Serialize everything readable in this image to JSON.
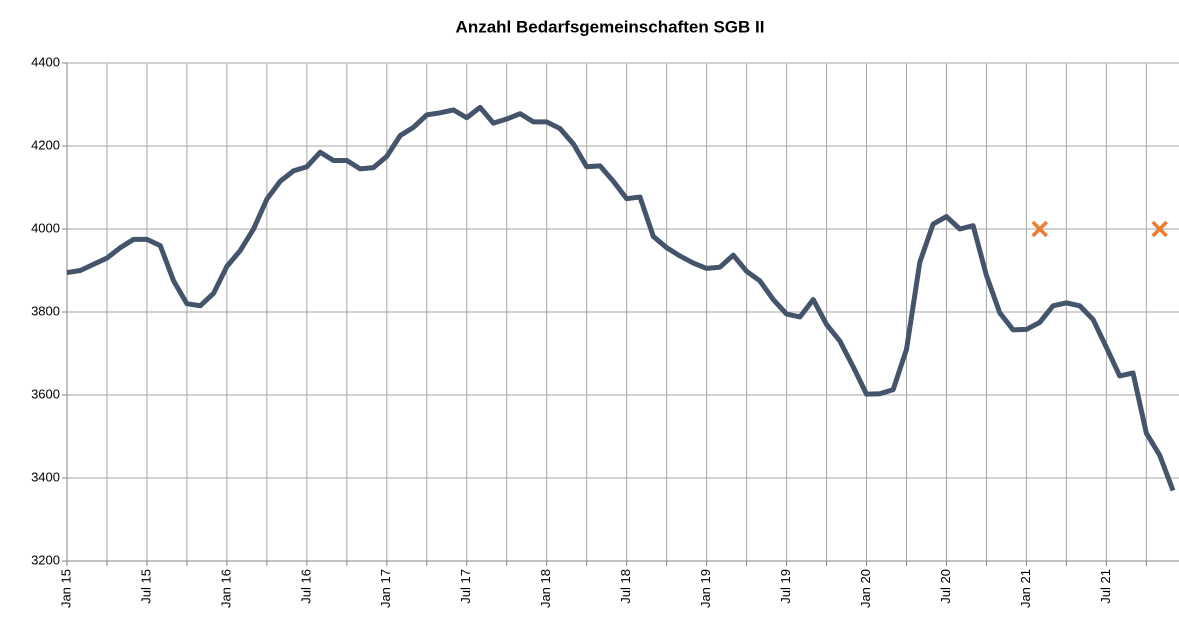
{
  "chart_data": {
    "type": "line",
    "title": "Anzahl Bedarfsgemeinschaften SGB II",
    "categories": [
      "Jan 15",
      null,
      null,
      null,
      null,
      null,
      "Jul 15",
      null,
      null,
      null,
      null,
      null,
      "Jan 16",
      null,
      null,
      null,
      null,
      null,
      "Jul 16",
      null,
      null,
      null,
      null,
      null,
      "Jan 17",
      null,
      null,
      null,
      null,
      null,
      "Jul 17",
      null,
      null,
      null,
      null,
      null,
      "Jan 18",
      null,
      null,
      null,
      null,
      null,
      "Jul 18",
      null,
      null,
      null,
      null,
      null,
      "Jan 19",
      null,
      null,
      null,
      null,
      null,
      "Jul 19",
      null,
      null,
      null,
      null,
      null,
      "Jan 20",
      null,
      null,
      null,
      null,
      null,
      "Jul 20",
      null,
      null,
      null,
      null,
      null,
      "Jan 21",
      null,
      null,
      null,
      null,
      null,
      "Jul 21",
      null,
      null,
      null,
      null,
      null
    ],
    "series": [
      {
        "color": "#44546a",
        "values": [
          3895,
          3900,
          3915,
          3930,
          3955,
          3975,
          3975,
          3960,
          3875,
          3820,
          3815,
          3845,
          3910,
          3948,
          4000,
          4072,
          4115,
          4140,
          4150,
          4185,
          4165,
          4165,
          4145,
          4148,
          4175,
          4225,
          4245,
          4275,
          4280,
          4287,
          4268,
          4293,
          4255,
          4265,
          4278,
          4258,
          4258,
          4242,
          4205,
          4150,
          4152,
          4115,
          4073,
          4077,
          3982,
          3955,
          3935,
          3918,
          3905,
          3908,
          3937,
          3898,
          3875,
          3830,
          3795,
          3788,
          3830,
          3770,
          3730,
          3668,
          3602,
          3603,
          3613,
          3710,
          3920,
          4012,
          4030,
          4000,
          4008,
          3888,
          3798,
          3757,
          3758,
          3775,
          3815,
          3822,
          3815,
          3782,
          3715,
          3646,
          3653,
          3508,
          3455,
          3370
        ]
      },
      {
        "color": "#ed7d31",
        "marker": "x",
        "values": [
          null,
          null,
          null,
          null,
          null,
          null,
          null,
          null,
          null,
          null,
          null,
          null,
          null,
          null,
          null,
          null,
          null,
          null,
          null,
          null,
          null,
          null,
          null,
          null,
          null,
          null,
          null,
          null,
          null,
          null,
          null,
          null,
          null,
          null,
          null,
          null,
          null,
          null,
          null,
          null,
          null,
          null,
          null,
          null,
          null,
          null,
          null,
          null,
          null,
          null,
          null,
          null,
          null,
          null,
          null,
          null,
          null,
          null,
          null,
          null,
          null,
          null,
          null,
          null,
          null,
          null,
          null,
          null,
          null,
          null,
          null,
          null,
          null,
          4000,
          null,
          null,
          null,
          null,
          null,
          null,
          null,
          null,
          4000,
          null
        ]
      }
    ],
    "ylim": [
      3200,
      4400
    ],
    "yticks": [
      3200,
      3400,
      3600,
      3800,
      4000,
      4200,
      4400
    ],
    "grid": true
  }
}
